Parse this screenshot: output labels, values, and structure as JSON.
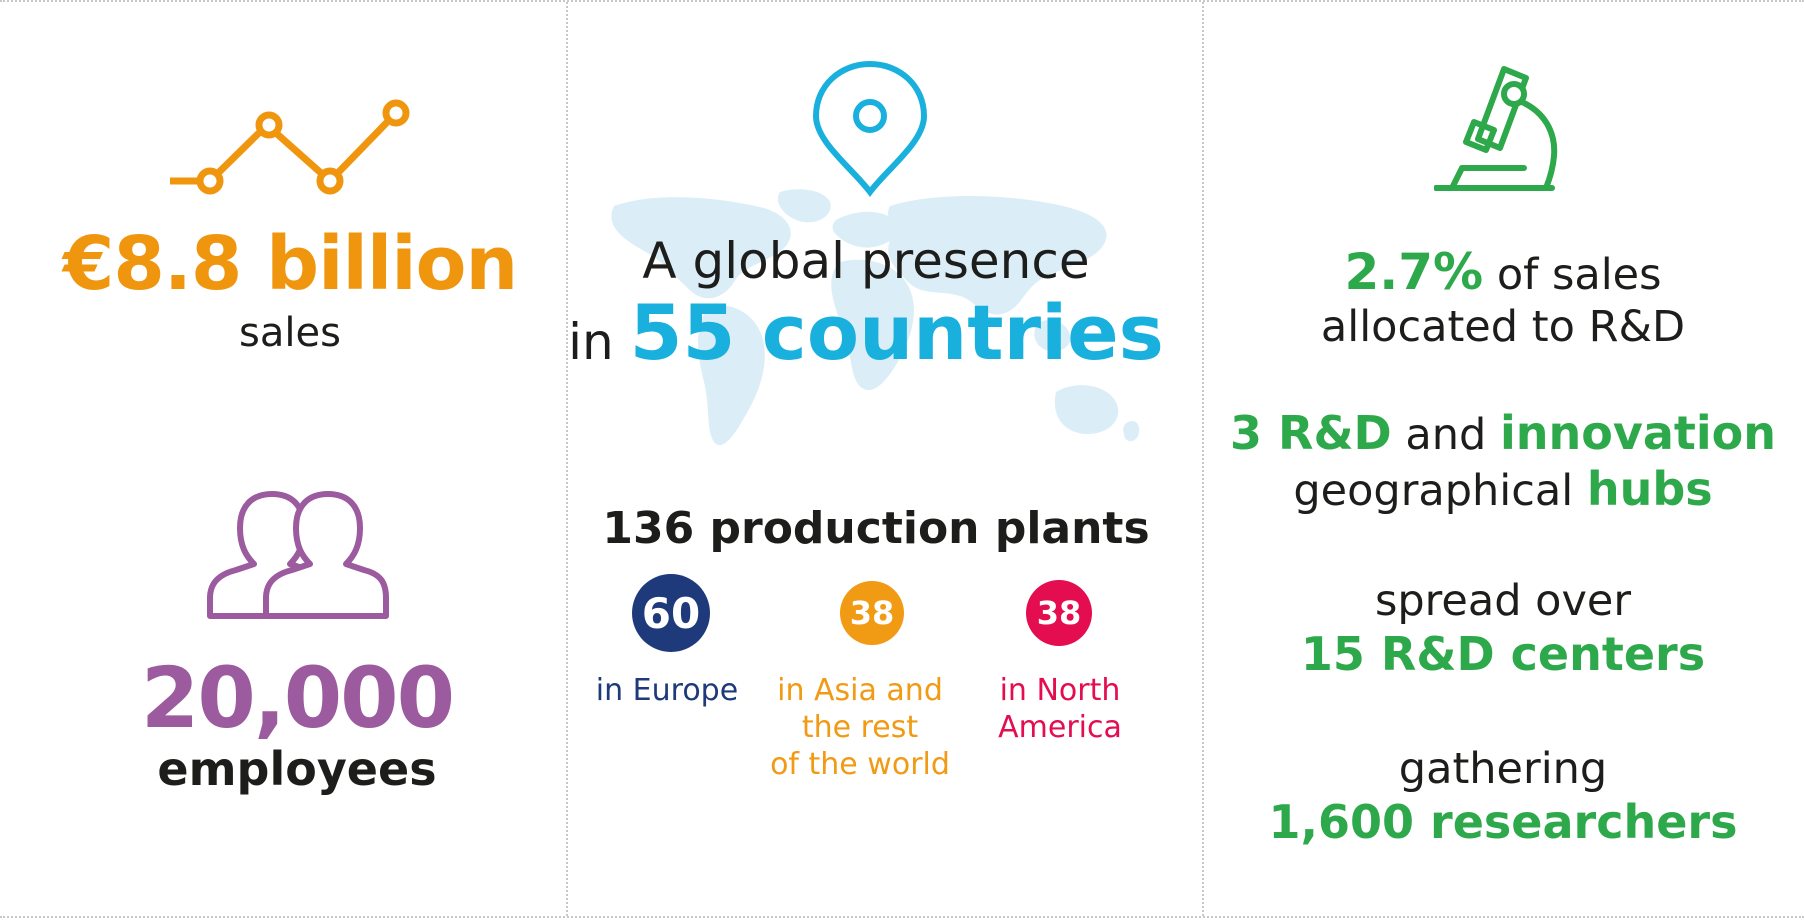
{
  "sales": {
    "value": "€8.8 billion",
    "label": "sales"
  },
  "employees": {
    "value": "20,000",
    "label": "employees"
  },
  "presence": {
    "line1": "A global presence",
    "prefix": "in",
    "highlight": "55 countries"
  },
  "plants": {
    "title": "136 production plants",
    "regions": [
      {
        "count": "60",
        "label": "in Europe",
        "color": "#1e3a7a"
      },
      {
        "count": "38",
        "label_lines": [
          "in Asia and",
          "the rest",
          "of the world"
        ],
        "color": "#f19a14"
      },
      {
        "count": "38",
        "label_lines": [
          "in North",
          "America"
        ],
        "color": "#e30d4f"
      }
    ]
  },
  "rd": {
    "share_value": "2.7%",
    "share_text": "of sales",
    "share_line2": "allocated to R&D",
    "hubs_count": "3 R&D",
    "hubs_and": "and",
    "hubs_innovation": "innovation",
    "hubs_geo": "geographical",
    "hubs_word": "hubs",
    "centers_intro": "spread over",
    "centers_value": "15 R&D centers",
    "researchers_intro": "gathering",
    "researchers_value": "1,600 researchers"
  },
  "icons": [
    "line-chart-icon",
    "people-icon",
    "map-pin-icon",
    "world-map-icon",
    "microscope-icon"
  ],
  "colors": {
    "orange": "#f0960e",
    "purple": "#9b5b9e",
    "cyan": "#1ab0de",
    "green": "#2da84a",
    "navy": "#1e3a7a",
    "amber": "#f19a14",
    "red": "#e30d4f"
  }
}
